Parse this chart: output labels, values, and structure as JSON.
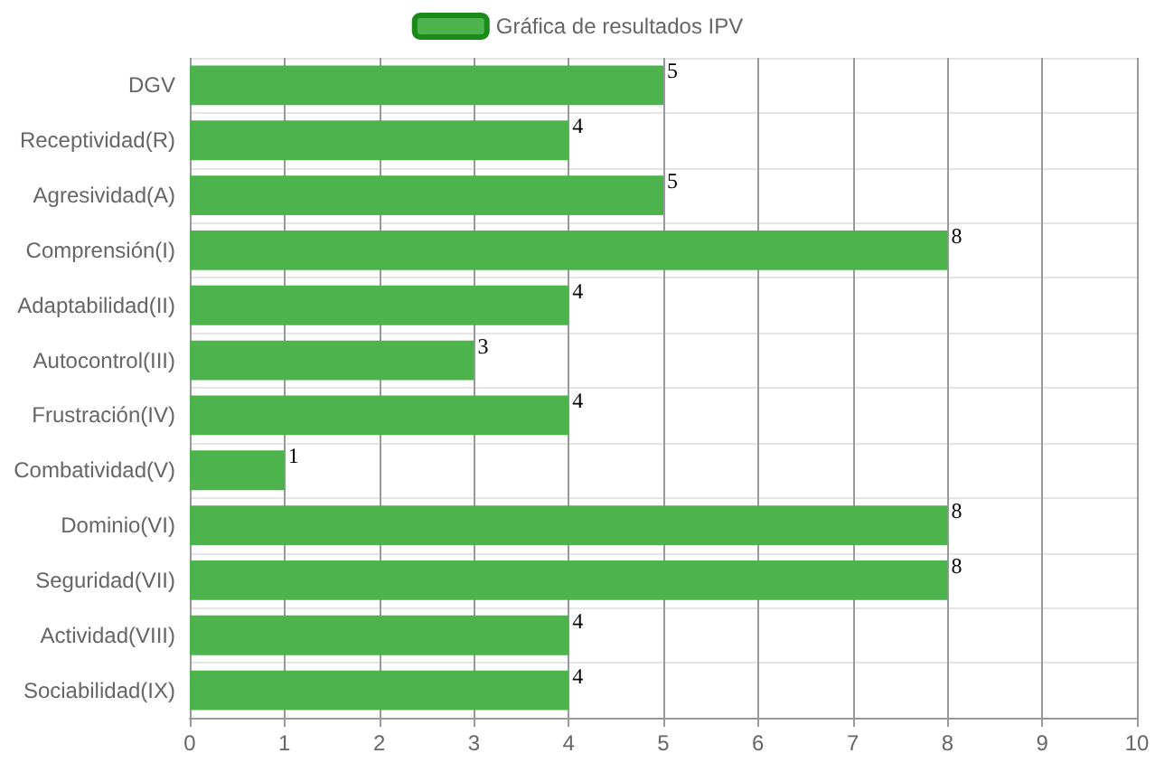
{
  "chart_data": {
    "type": "bar",
    "orientation": "horizontal",
    "categories": [
      "DGV",
      "Receptividad(R)",
      "Agresividad(A)",
      "Comprensión(I)",
      "Adaptabilidad(II)",
      "Autocontrol(III)",
      "Frustración(IV)",
      "Combatividad(V)",
      "Dominio(VI)",
      "Seguridad(VII)",
      "Actividad(VIII)",
      "Sociabilidad(IX)"
    ],
    "series": [
      {
        "name": "Gráfica de resultados IPV",
        "color": "#4db34d",
        "values": [
          5,
          4,
          5,
          8,
          4,
          3,
          4,
          1,
          8,
          8,
          4,
          4
        ]
      }
    ],
    "xlim": [
      0,
      10
    ],
    "xticks": [
      0,
      1,
      2,
      3,
      4,
      5,
      6,
      7,
      8,
      9,
      10
    ],
    "grid": true,
    "legend": "top",
    "data_labels": true
  }
}
